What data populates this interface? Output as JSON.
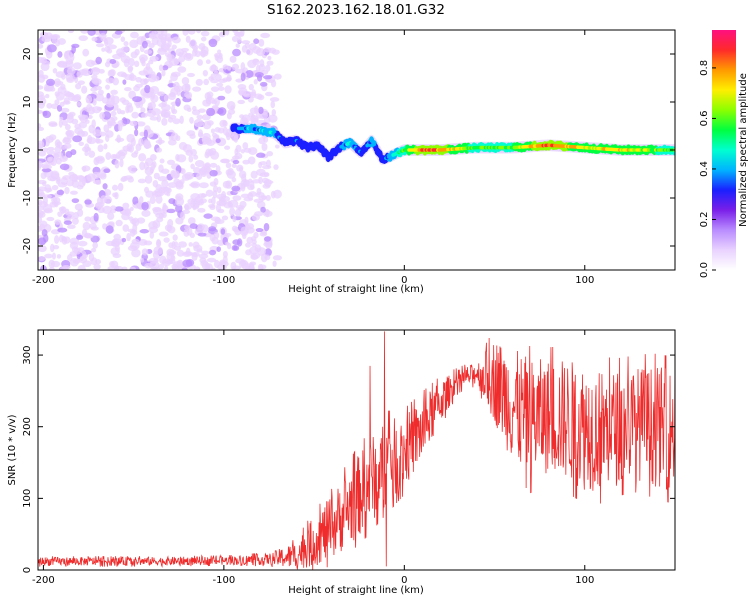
{
  "title": "S162.2023.162.18.01.G32",
  "chart_data": [
    {
      "type": "heatmap",
      "title": "",
      "xlabel": "Height of straight line (km)",
      "ylabel": "Frequency (Hz)",
      "xlim": [
        -203,
        150
      ],
      "ylim": [
        -25,
        25
      ],
      "xticks": [
        -200,
        -100,
        0,
        100
      ],
      "yticks": [
        -20,
        -10,
        0,
        10,
        20
      ],
      "colorbar": {
        "label": "Normalized spectral amplitude",
        "range": [
          0,
          0.95
        ],
        "ticks": [
          0.0,
          0.2,
          0.4,
          0.6,
          0.8
        ],
        "colors": [
          "#ffffff",
          "#e9d2ff",
          "#b98cff",
          "#7a1fe8",
          "#1a20ff",
          "#00b4ff",
          "#00ffd0",
          "#00ff40",
          "#8cff00",
          "#ffee00",
          "#ff9a00",
          "#ff2a2a",
          "#ff1080"
        ]
      },
      "ridge": {
        "name": "dominant frequency",
        "x": [
          -92,
          -85,
          -78,
          -72,
          -66,
          -60,
          -54,
          -48,
          -42,
          -36,
          -30,
          -24,
          -18,
          -12,
          -6,
          0,
          10,
          20,
          40,
          60,
          80,
          100,
          120,
          150
        ],
        "y": [
          4.5,
          4.5,
          4.0,
          3.5,
          1.5,
          2.0,
          0.5,
          1.0,
          -1.5,
          0.5,
          1.5,
          -0.5,
          2.0,
          -2.0,
          -1.0,
          0.0,
          0.0,
          0.0,
          0.5,
          0.5,
          1.0,
          0.5,
          0.0,
          0.0
        ],
        "amp": [
          0.35,
          0.4,
          0.45,
          0.4,
          0.3,
          0.35,
          0.25,
          0.3,
          0.25,
          0.3,
          0.5,
          0.3,
          0.4,
          0.3,
          0.45,
          0.6,
          0.9,
          0.85,
          0.6,
          0.65,
          0.9,
          0.7,
          0.75,
          0.6
        ]
      },
      "noise_region": {
        "x_min": -203,
        "x_max": -75,
        "fade_until": -70
      }
    },
    {
      "type": "line",
      "title": "",
      "xlabel": "Height of straight line (km)",
      "ylabel": "SNR (10 * v/v)",
      "xlim": [
        -203,
        150
      ],
      "ylim": [
        0,
        335
      ],
      "xticks": [
        -200,
        -100,
        0,
        100
      ],
      "yticks": [
        0,
        100,
        200,
        300
      ],
      "series": [
        {
          "color": "#ef2b2b",
          "x": [
            -203,
            -150,
            -100,
            -75,
            -60,
            -50,
            -40,
            -30,
            -20,
            -10,
            0,
            10,
            20,
            30,
            40,
            50,
            60,
            70,
            80,
            90,
            100,
            110,
            120,
            130,
            140,
            150
          ],
          "baseline": [
            12,
            12,
            13,
            15,
            20,
            40,
            60,
            90,
            120,
            150,
            165,
            195,
            235,
            265,
            275,
            265,
            230,
            210,
            215,
            210,
            200,
            195,
            200,
            205,
            200,
            195
          ],
          "spread": [
            6,
            6,
            6,
            8,
            20,
            35,
            45,
            55,
            60,
            60,
            50,
            45,
            30,
            15,
            15,
            60,
            80,
            85,
            80,
            85,
            90,
            85,
            80,
            80,
            85,
            85
          ],
          "spikes": [
            {
              "x": -11,
              "y": 333
            },
            {
              "x": -10,
              "y": 5
            },
            {
              "x": -19,
              "y": 285
            }
          ]
        }
      ]
    }
  ]
}
